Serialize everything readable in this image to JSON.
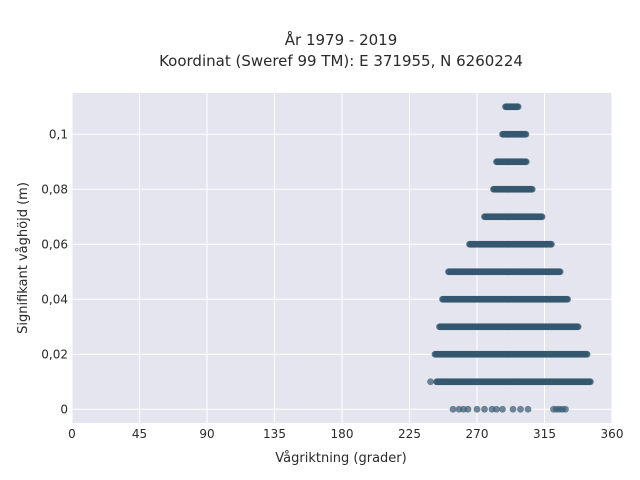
{
  "chart_data": {
    "type": "scatter",
    "title_lines": [
      "År 1979 - 2019",
      "Koordinat (Sweref 99 TM): E 371955, N 6260224"
    ],
    "xlabel": "Vågriktning (grader)",
    "ylabel": "Signifikant våghöjd (m)",
    "xlim": [
      0,
      360
    ],
    "ylim": [
      -0.005,
      0.115
    ],
    "xticks": [
      0,
      45,
      90,
      135,
      180,
      225,
      270,
      315,
      360
    ],
    "xtick_labels": [
      "0",
      "45",
      "90",
      "135",
      "180",
      "225",
      "270",
      "315",
      "360"
    ],
    "yticks": [
      0,
      0.02,
      0.04,
      0.06,
      0.08,
      0.1
    ],
    "ytick_labels": [
      "0",
      "0,02",
      "0,04",
      "0,06",
      "0,08",
      "0,1"
    ],
    "grid": true,
    "marker_color": "#34586f",
    "background_color": "#e5e5ef",
    "rows": [
      {
        "y": 0.11,
        "xmin": 289,
        "xmax": 298
      },
      {
        "y": 0.1,
        "xmin": 287,
        "xmax": 303
      },
      {
        "y": 0.09,
        "xmin": 283,
        "xmax": 303
      },
      {
        "y": 0.08,
        "xmin": 281,
        "xmax": 307
      },
      {
        "y": 0.07,
        "xmin": 275,
        "xmax": 314
      },
      {
        "y": 0.06,
        "xmin": 265,
        "xmax": 320
      },
      {
        "y": 0.05,
        "xmin": 251,
        "xmax": 326
      },
      {
        "y": 0.04,
        "xmin": 247,
        "xmax": 331
      },
      {
        "y": 0.03,
        "xmin": 245,
        "xmax": 338
      },
      {
        "y": 0.02,
        "xmin": 242,
        "xmax": 344
      },
      {
        "y": 0.01,
        "xmin": 243,
        "xmax": 346
      }
    ],
    "scattered_points": [
      {
        "x": 239,
        "y": 0.01
      },
      {
        "x": 254,
        "y": 0
      },
      {
        "x": 258,
        "y": 0
      },
      {
        "x": 261,
        "y": 0
      },
      {
        "x": 264,
        "y": 0
      },
      {
        "x": 270,
        "y": 0
      },
      {
        "x": 275,
        "y": 0
      },
      {
        "x": 280,
        "y": 0
      },
      {
        "x": 283,
        "y": 0
      },
      {
        "x": 287,
        "y": 0
      },
      {
        "x": 294,
        "y": 0
      },
      {
        "x": 299,
        "y": 0
      },
      {
        "x": 304,
        "y": 0
      },
      {
        "x": 321,
        "y": 0
      },
      {
        "x": 323,
        "y": 0
      },
      {
        "x": 325,
        "y": 0
      },
      {
        "x": 327,
        "y": 0
      },
      {
        "x": 329,
        "y": 0
      }
    ]
  }
}
